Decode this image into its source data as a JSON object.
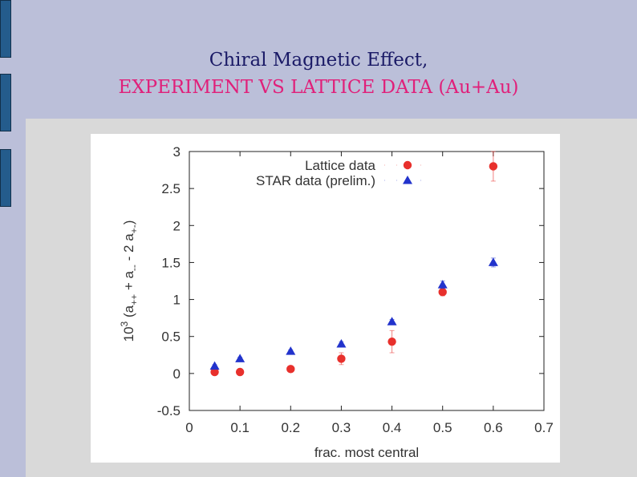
{
  "slide": {
    "title_line1": "Chiral Magnetic Effect,",
    "title_line2": "EXPERIMENT  VS LATTICE DATA (Au+Au)"
  },
  "colors": {
    "lattice": "#e8302c",
    "star": "#2233cc",
    "title_line1": "#1a1a66",
    "title_line2": "#e0207a"
  },
  "chart_data": {
    "type": "scatter",
    "xlabel": "frac. most central",
    "ylabel": "10^3 (a++ + a-- - 2 a+-)",
    "xlim": [
      0,
      0.7
    ],
    "ylim": [
      -0.5,
      3
    ],
    "xticks": [
      "0",
      "0.1",
      "0.2",
      "0.3",
      "0.4",
      "0.5",
      "0.6",
      "0.7"
    ],
    "yticks": [
      "-0.5",
      "0",
      "0.5",
      "1",
      "1.5",
      "2",
      "2.5",
      "3"
    ],
    "grid": false,
    "legend_position": "top-right",
    "series": [
      {
        "name": "Lattice data",
        "marker": "circle",
        "color": "#e8302c",
        "points": [
          {
            "x": 0.05,
            "y": 0.02,
            "err": 0.02
          },
          {
            "x": 0.1,
            "y": 0.02,
            "err": 0.02
          },
          {
            "x": 0.2,
            "y": 0.06,
            "err": 0.03
          },
          {
            "x": 0.3,
            "y": 0.2,
            "err": 0.08
          },
          {
            "x": 0.4,
            "y": 0.43,
            "err": 0.15
          },
          {
            "x": 0.5,
            "y": 1.1,
            "err": 0.05
          },
          {
            "x": 0.6,
            "y": 2.8,
            "err": 0.2
          }
        ]
      },
      {
        "name": "STAR data (prelim.)",
        "marker": "triangle",
        "color": "#2233cc",
        "points": [
          {
            "x": 0.05,
            "y": 0.1,
            "err": 0.02
          },
          {
            "x": 0.1,
            "y": 0.2,
            "err": 0.02
          },
          {
            "x": 0.2,
            "y": 0.3,
            "err": 0.02
          },
          {
            "x": 0.3,
            "y": 0.4,
            "err": 0.03
          },
          {
            "x": 0.4,
            "y": 0.7,
            "err": 0.03
          },
          {
            "x": 0.5,
            "y": 1.2,
            "err": 0.05
          },
          {
            "x": 0.6,
            "y": 1.5,
            "err": 0.06
          }
        ]
      }
    ]
  }
}
